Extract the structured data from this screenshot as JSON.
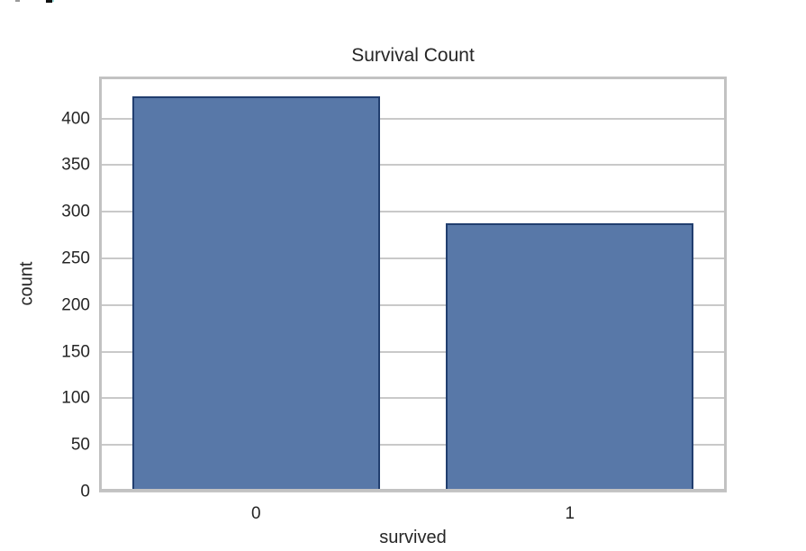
{
  "chart_data": {
    "type": "bar",
    "title": "Survival Count",
    "xlabel": "survived",
    "ylabel": "count",
    "categories": [
      "0",
      "1"
    ],
    "values": [
      424,
      288
    ],
    "ylim": [
      0,
      445
    ],
    "yticks": [
      0,
      50,
      100,
      150,
      200,
      250,
      300,
      350,
      400
    ],
    "grid": true,
    "legend": "none",
    "bar_color": "#5878a8",
    "bar_edge_color": "#213e6f",
    "grid_color": "#c9c9c9",
    "spine_color": "#c2c2c2",
    "text_color": "#262626",
    "background_color": "#ffffff"
  },
  "artifacts": {
    "top_left_fragments": [
      "clipped-ui-fragment-gray",
      "clipped-ui-fragment-dark",
      "clipped-ui-fragment-cyan"
    ]
  }
}
